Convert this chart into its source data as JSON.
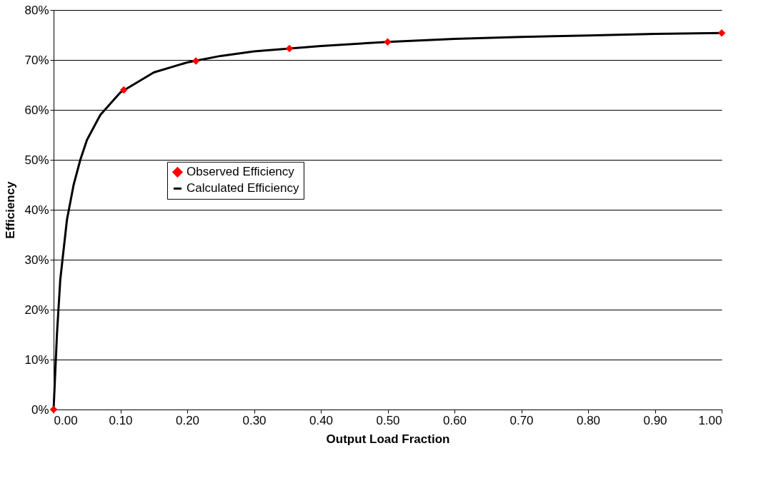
{
  "chart_data": {
    "type": "line",
    "xlabel": "Output Load Fraction",
    "ylabel": "Efficiency",
    "xlim": [
      0,
      1
    ],
    "ylim": [
      0,
      80
    ],
    "xticks": [
      {
        "value": 0,
        "label": "0.00"
      },
      {
        "value": 0.1,
        "label": "0.10"
      },
      {
        "value": 0.2,
        "label": "0.20"
      },
      {
        "value": 0.3,
        "label": "0.30"
      },
      {
        "value": 0.4,
        "label": "0.40"
      },
      {
        "value": 0.5,
        "label": "0.50"
      },
      {
        "value": 0.6,
        "label": "0.60"
      },
      {
        "value": 0.7,
        "label": "0.70"
      },
      {
        "value": 0.8,
        "label": "0.80"
      },
      {
        "value": 0.9,
        "label": "0.90"
      },
      {
        "value": 1,
        "label": "1.00"
      }
    ],
    "yticks": [
      {
        "value": 0,
        "label": "0%"
      },
      {
        "value": 10,
        "label": "10%"
      },
      {
        "value": 20,
        "label": "20%"
      },
      {
        "value": 30,
        "label": "30%"
      },
      {
        "value": 40,
        "label": "40%"
      },
      {
        "value": 50,
        "label": "50%"
      },
      {
        "value": 60,
        "label": "60%"
      },
      {
        "value": 70,
        "label": "70%"
      },
      {
        "value": 80,
        "label": "80%"
      }
    ],
    "grid": "y",
    "legend": "left",
    "series": [
      {
        "name": "Observed Efficiency",
        "type": "scatter",
        "marker": "diamond",
        "color": "#ff0000",
        "x": [
          0,
          0.105,
          0.213,
          0.353,
          0.5,
          1.0
        ],
        "values": [
          0,
          64.0,
          69.8,
          72.3,
          73.6,
          75.4
        ]
      },
      {
        "name": "Calculated Efficiency",
        "line_style": "solid",
        "color": "#000000",
        "x": [
          0,
          0.005,
          0.01,
          0.02,
          0.03,
          0.04,
          0.05,
          0.07,
          0.1,
          0.15,
          0.2,
          0.25,
          0.3,
          0.4,
          0.5,
          0.6,
          0.7,
          0.8,
          0.9,
          1.0
        ],
        "values": [
          0,
          15,
          26,
          38,
          45,
          50,
          54,
          59,
          63.5,
          67.5,
          69.5,
          70.8,
          71.7,
          72.8,
          73.6,
          74.2,
          74.6,
          74.9,
          75.2,
          75.4
        ]
      }
    ]
  }
}
